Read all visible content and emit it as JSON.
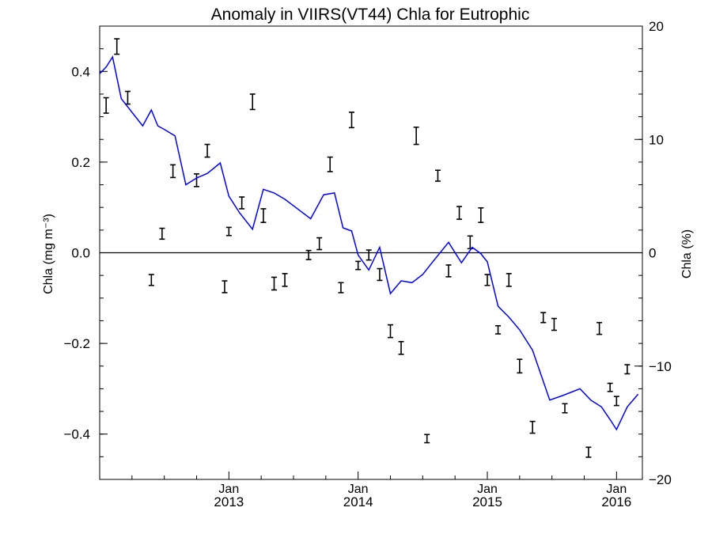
{
  "chart_data": {
    "type": "line",
    "title": "Anomaly in VIIRS(VT44) Chla for Eutrophic",
    "ylabel_left": "Chla (mg m⁻³)",
    "ylabel_right": "Chla (%)",
    "ylim_left": [
      -0.5,
      0.5
    ],
    "ylim_right": [
      -20,
      20
    ],
    "yticks_left": [
      0.4,
      0.2,
      0.0,
      -0.2,
      -0.4
    ],
    "ytick_labels_left": [
      "0.4",
      "0.2",
      "0.0",
      "−0.2",
      "−0.4"
    ],
    "yticks_right": [
      20,
      10,
      0,
      -10,
      -20
    ],
    "ytick_labels_right": [
      "20",
      "10",
      "0",
      "−10",
      "−20"
    ],
    "x_range": [
      2012.0,
      2016.2
    ],
    "x_ticks": [
      {
        "x": 2013.0,
        "month": "Jan",
        "year": "2013"
      },
      {
        "x": 2014.0,
        "month": "Jan",
        "year": "2014"
      },
      {
        "x": 2015.0,
        "month": "Jan",
        "year": "2015"
      },
      {
        "x": 2016.0,
        "month": "Jan",
        "year": "2016"
      }
    ],
    "zero_line": true,
    "grid": false,
    "colors": {
      "line": "#0000ff",
      "points": "#000000",
      "axes": "#000000"
    },
    "series": [
      {
        "kind": "error_points",
        "axis": "left",
        "points": [
          {
            "x": 2012.05,
            "y": 0.325,
            "err": 0.017
          },
          {
            "x": 2012.133,
            "y": 0.455,
            "err": 0.017
          },
          {
            "x": 2012.217,
            "y": 0.342,
            "err": 0.014
          },
          {
            "x": 2012.4,
            "y": -0.06,
            "err": 0.012
          },
          {
            "x": 2012.483,
            "y": 0.042,
            "err": 0.012
          },
          {
            "x": 2012.567,
            "y": 0.18,
            "err": 0.014
          },
          {
            "x": 2012.75,
            "y": 0.16,
            "err": 0.014
          },
          {
            "x": 2012.833,
            "y": 0.225,
            "err": 0.014
          },
          {
            "x": 2012.967,
            "y": -0.075,
            "err": 0.013
          },
          {
            "x": 2013.0,
            "y": 0.047,
            "err": 0.009
          },
          {
            "x": 2013.1,
            "y": 0.11,
            "err": 0.013
          },
          {
            "x": 2013.183,
            "y": 0.333,
            "err": 0.017
          },
          {
            "x": 2013.267,
            "y": 0.082,
            "err": 0.015
          },
          {
            "x": 2013.35,
            "y": -0.068,
            "err": 0.014
          },
          {
            "x": 2013.433,
            "y": -0.06,
            "err": 0.014
          },
          {
            "x": 2013.617,
            "y": -0.005,
            "err": 0.01
          },
          {
            "x": 2013.7,
            "y": 0.02,
            "err": 0.013
          },
          {
            "x": 2013.783,
            "y": 0.195,
            "err": 0.016
          },
          {
            "x": 2013.867,
            "y": -0.077,
            "err": 0.011
          },
          {
            "x": 2013.95,
            "y": 0.293,
            "err": 0.017
          },
          {
            "x": 2014.0,
            "y": -0.028,
            "err": 0.009
          },
          {
            "x": 2014.083,
            "y": -0.005,
            "err": 0.011
          },
          {
            "x": 2014.167,
            "y": -0.048,
            "err": 0.013
          },
          {
            "x": 2014.25,
            "y": -0.173,
            "err": 0.014
          },
          {
            "x": 2014.333,
            "y": -0.21,
            "err": 0.014
          },
          {
            "x": 2014.45,
            "y": 0.258,
            "err": 0.019
          },
          {
            "x": 2014.533,
            "y": -0.41,
            "err": 0.009
          },
          {
            "x": 2014.617,
            "y": 0.17,
            "err": 0.012
          },
          {
            "x": 2014.7,
            "y": -0.04,
            "err": 0.013
          },
          {
            "x": 2014.783,
            "y": 0.088,
            "err": 0.014
          },
          {
            "x": 2014.867,
            "y": 0.023,
            "err": 0.014
          },
          {
            "x": 2014.95,
            "y": 0.083,
            "err": 0.016
          },
          {
            "x": 2015.0,
            "y": -0.06,
            "err": 0.012
          },
          {
            "x": 2015.083,
            "y": -0.17,
            "err": 0.009
          },
          {
            "x": 2015.167,
            "y": -0.06,
            "err": 0.014
          },
          {
            "x": 2015.25,
            "y": -0.25,
            "err": 0.015
          },
          {
            "x": 2015.35,
            "y": -0.385,
            "err": 0.013
          },
          {
            "x": 2015.433,
            "y": -0.143,
            "err": 0.011
          },
          {
            "x": 2015.517,
            "y": -0.158,
            "err": 0.013
          },
          {
            "x": 2015.6,
            "y": -0.343,
            "err": 0.01
          },
          {
            "x": 2015.783,
            "y": -0.44,
            "err": 0.011
          },
          {
            "x": 2015.867,
            "y": -0.167,
            "err": 0.013
          },
          {
            "x": 2015.95,
            "y": -0.297,
            "err": 0.009
          },
          {
            "x": 2016.0,
            "y": -0.327,
            "err": 0.01
          },
          {
            "x": 2016.083,
            "y": -0.257,
            "err": 0.01
          }
        ]
      },
      {
        "kind": "line",
        "axis": "left",
        "x": [
          2012.0,
          2012.05,
          2012.1,
          2012.167,
          2012.25,
          2012.333,
          2012.4,
          2012.45,
          2012.5,
          2012.583,
          2012.667,
          2012.75,
          2012.833,
          2012.933,
          2013.0,
          2013.083,
          2013.183,
          2013.267,
          2013.35,
          2013.433,
          2013.517,
          2013.633,
          2013.733,
          2013.817,
          2013.883,
          2013.95,
          2014.0,
          2014.083,
          2014.167,
          2014.25,
          2014.333,
          2014.417,
          2014.5,
          2014.583,
          2014.7,
          2014.8,
          2014.883,
          2014.95,
          2015.0,
          2015.083,
          2015.167,
          2015.25,
          2015.35,
          2015.483,
          2015.583,
          2015.717,
          2015.8,
          2015.883,
          2015.95,
          2016.0,
          2016.083,
          2016.167
        ],
        "values": [
          0.395,
          0.41,
          0.432,
          0.34,
          0.31,
          0.28,
          0.315,
          0.28,
          0.272,
          0.258,
          0.15,
          0.165,
          0.175,
          0.198,
          0.125,
          0.088,
          0.052,
          0.14,
          0.132,
          0.118,
          0.1,
          0.075,
          0.128,
          0.132,
          0.055,
          0.048,
          -0.005,
          -0.038,
          0.012,
          -0.09,
          -0.062,
          -0.066,
          -0.048,
          -0.018,
          0.023,
          -0.022,
          0.012,
          -0.002,
          -0.02,
          -0.118,
          -0.142,
          -0.17,
          -0.215,
          -0.325,
          -0.315,
          -0.3,
          -0.325,
          -0.34,
          -0.368,
          -0.39,
          -0.34,
          -0.312
        ]
      }
    ]
  }
}
